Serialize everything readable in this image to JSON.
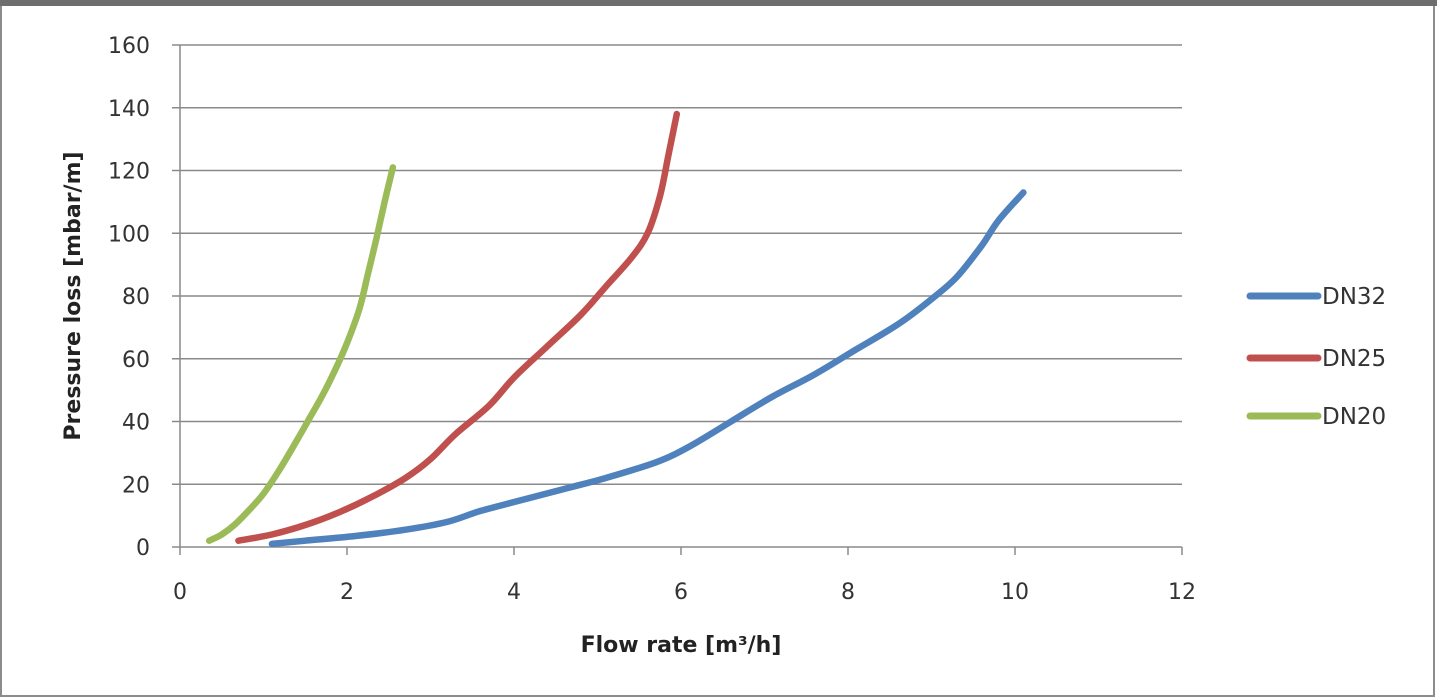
{
  "chart_data": {
    "type": "line",
    "title": "",
    "xlabel": "Flow rate [m³/h]",
    "ylabel": "Pressure loss [mbar/m]",
    "xlim": [
      0,
      12
    ],
    "ylim": [
      0,
      160
    ],
    "x_ticks": [
      "0",
      "2",
      "4",
      "6",
      "8",
      "10",
      "12"
    ],
    "y_ticks": [
      "0",
      "20",
      "40",
      "60",
      "80",
      "100",
      "120",
      "140",
      "160"
    ],
    "grid": "horizontal",
    "legend_position": "right",
    "series": [
      {
        "name": "DN32",
        "color": "#4f81bd",
        "points": [
          [
            1.1,
            1
          ],
          [
            1.5,
            2
          ],
          [
            2.1,
            3.5
          ],
          [
            2.7,
            5.5
          ],
          [
            3.2,
            8
          ],
          [
            3.6,
            11.5
          ],
          [
            4.1,
            15
          ],
          [
            4.6,
            18.5
          ],
          [
            5.1,
            22
          ],
          [
            5.7,
            27
          ],
          [
            6.1,
            32
          ],
          [
            6.6,
            40
          ],
          [
            7.1,
            48
          ],
          [
            7.6,
            55
          ],
          [
            8.1,
            63
          ],
          [
            8.6,
            71
          ],
          [
            9.0,
            79
          ],
          [
            9.3,
            86
          ],
          [
            9.6,
            96
          ],
          [
            9.8,
            104
          ],
          [
            10.1,
            113
          ]
        ]
      },
      {
        "name": "DN25",
        "color": "#c0504d",
        "points": [
          [
            0.7,
            2
          ],
          [
            1.1,
            4
          ],
          [
            1.5,
            7
          ],
          [
            1.9,
            11
          ],
          [
            2.3,
            16
          ],
          [
            2.7,
            22
          ],
          [
            3.0,
            28
          ],
          [
            3.3,
            36
          ],
          [
            3.7,
            45
          ],
          [
            4.0,
            54
          ],
          [
            4.4,
            64
          ],
          [
            4.8,
            74
          ],
          [
            5.1,
            83
          ],
          [
            5.4,
            92
          ],
          [
            5.6,
            100
          ],
          [
            5.75,
            112
          ],
          [
            5.85,
            125
          ],
          [
            5.95,
            138
          ]
        ]
      },
      {
        "name": "DN20",
        "color": "#9bbb59",
        "points": [
          [
            0.35,
            2
          ],
          [
            0.5,
            4
          ],
          [
            0.65,
            7
          ],
          [
            0.8,
            11
          ],
          [
            1.0,
            17
          ],
          [
            1.2,
            25
          ],
          [
            1.4,
            34
          ],
          [
            1.55,
            41
          ],
          [
            1.7,
            48
          ],
          [
            1.85,
            56
          ],
          [
            2.0,
            65
          ],
          [
            2.15,
            76
          ],
          [
            2.25,
            87
          ],
          [
            2.35,
            98
          ],
          [
            2.45,
            110
          ],
          [
            2.55,
            121
          ]
        ]
      }
    ]
  }
}
